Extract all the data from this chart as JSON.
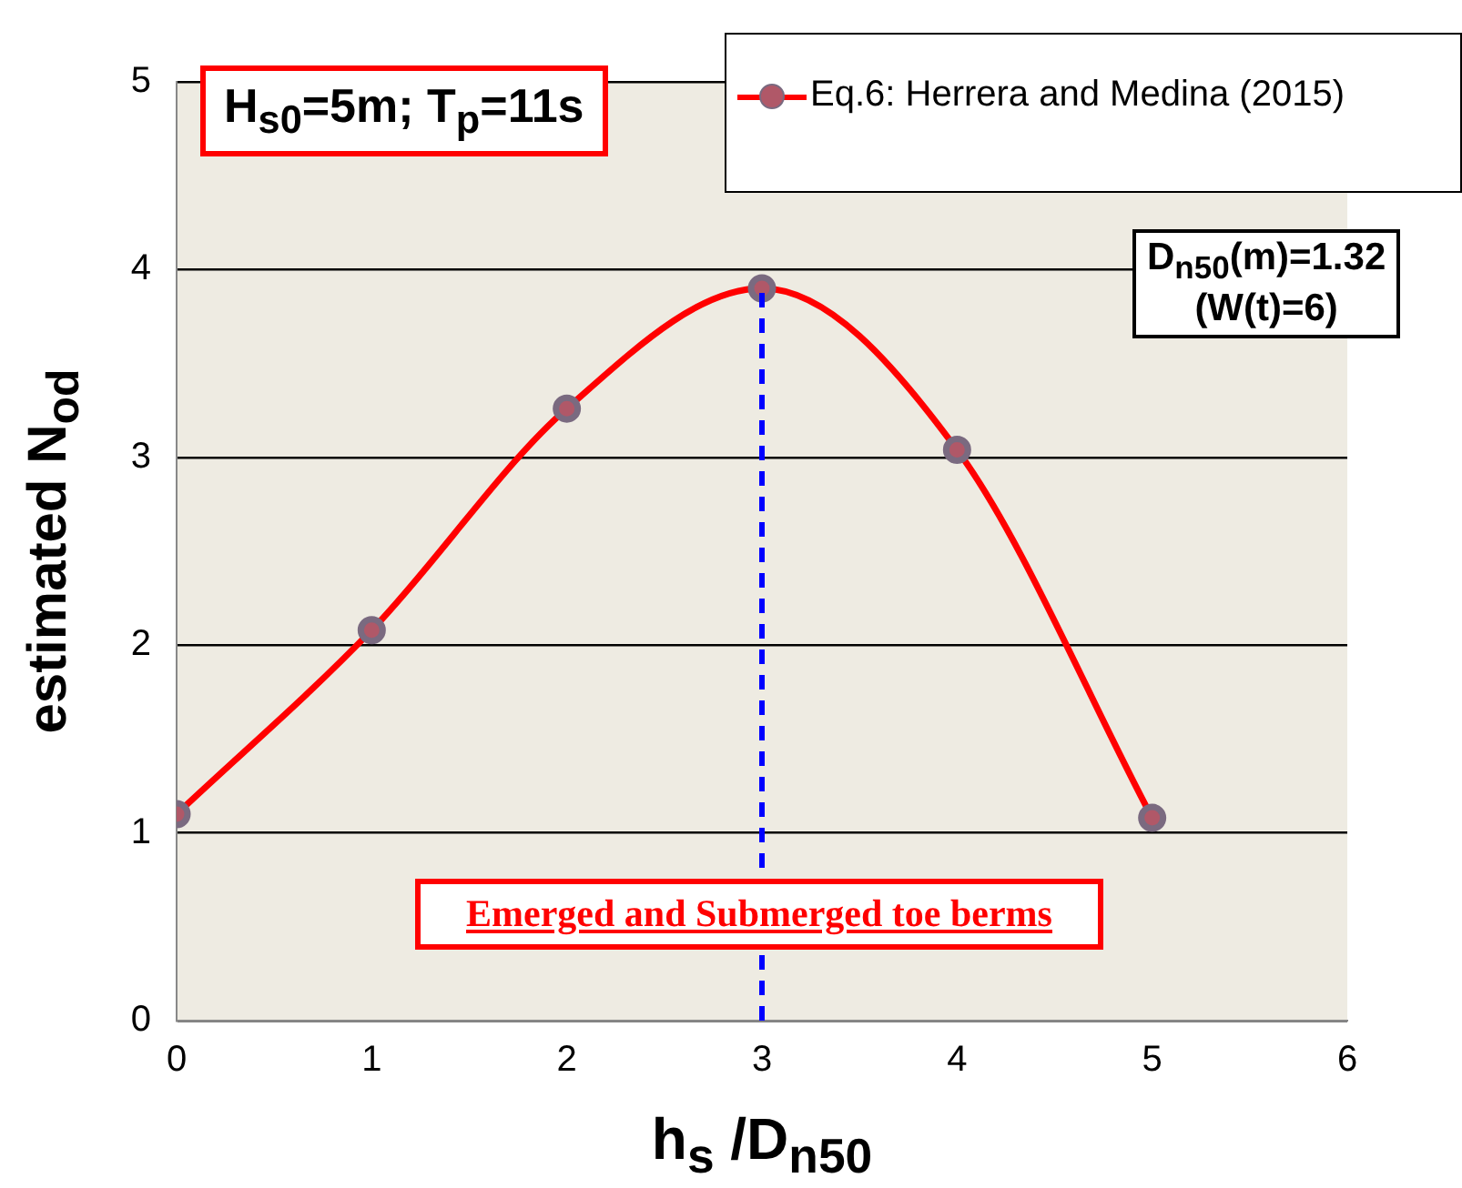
{
  "chart_data": {
    "type": "line",
    "xlabel": "h$_{s}$ /D$_{n50}$",
    "ylabel": "estimated N$_{od}$",
    "x": [
      0,
      1,
      2,
      3,
      4,
      5
    ],
    "series": [
      {
        "name": "Eq.6: Herrera and Medina (2015)",
        "color": "#ff0000",
        "values": [
          1.1,
          2.08,
          3.26,
          3.9,
          3.04,
          1.08
        ]
      }
    ],
    "xlim": [
      0,
      6
    ],
    "xticks": [
      0,
      1,
      2,
      3,
      4,
      5,
      6
    ],
    "ylim": [
      0,
      5
    ],
    "yticks": [
      0,
      1,
      2,
      3,
      4,
      5
    ],
    "grid": "y",
    "legend": "top right",
    "marker": "circle",
    "line_style": "solid",
    "ref_lines": [
      {
        "axis": "x",
        "value": 3,
        "color": "#0000ff",
        "line_style": "dashed"
      }
    ],
    "annotations": [
      "H$_{s0}$=5m; T$_{p}$=11s",
      "D$_{n50}$(m)=1.32\n(W(t)=6)",
      "Emerged and Submerged toe berms"
    ]
  }
}
